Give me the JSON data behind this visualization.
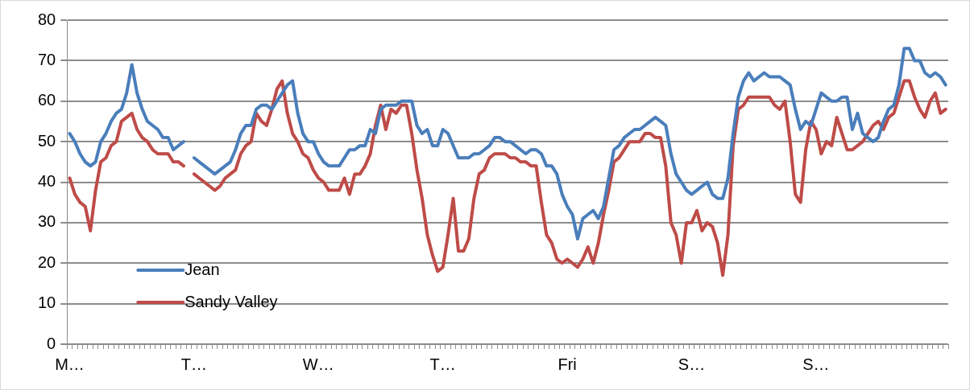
{
  "chart_data": {
    "type": "line",
    "categories": [
      "M…",
      null,
      null,
      null,
      null,
      null,
      null,
      null,
      null,
      null,
      null,
      null,
      null,
      null,
      null,
      null,
      null,
      null,
      null,
      null,
      null,
      null,
      null,
      null,
      "T…",
      null,
      null,
      null,
      null,
      null,
      null,
      null,
      null,
      null,
      null,
      null,
      null,
      null,
      null,
      null,
      null,
      null,
      null,
      null,
      null,
      null,
      null,
      null,
      "W…",
      null,
      null,
      null,
      null,
      null,
      null,
      null,
      null,
      null,
      null,
      null,
      null,
      null,
      null,
      null,
      null,
      null,
      null,
      null,
      null,
      null,
      null,
      null,
      "T…",
      null,
      null,
      null,
      null,
      null,
      null,
      null,
      null,
      null,
      null,
      null,
      null,
      null,
      null,
      null,
      null,
      null,
      null,
      null,
      null,
      null,
      null,
      null,
      "Fri",
      null,
      null,
      null,
      null,
      null,
      null,
      null,
      null,
      null,
      null,
      null,
      null,
      null,
      null,
      null,
      null,
      null,
      null,
      null,
      null,
      null,
      null,
      null,
      "S…",
      null,
      null,
      null,
      null,
      null,
      null,
      null,
      null,
      null,
      null,
      null,
      null,
      null,
      null,
      null,
      null,
      null,
      null,
      null,
      null,
      null,
      null,
      null,
      "S…",
      null,
      null,
      null,
      null,
      null,
      null,
      null,
      null,
      null,
      null,
      null,
      null,
      null,
      null,
      null,
      null,
      null,
      null,
      null,
      null,
      null,
      null,
      null,
      null,
      null
    ],
    "series": [
      {
        "name": "Jean",
        "color": "#4a7ebb",
        "values": [
          52,
          50,
          47,
          45,
          44,
          45,
          50,
          52,
          55,
          57,
          58,
          62,
          69,
          62,
          58,
          55,
          54,
          53,
          51,
          51,
          48,
          49,
          50,
          null,
          46,
          45,
          44,
          43,
          42,
          43,
          44,
          45,
          48,
          52,
          54,
          54,
          58,
          59,
          59,
          58,
          60,
          62,
          64,
          65,
          57,
          52,
          50,
          50,
          47,
          45,
          44,
          44,
          44,
          46,
          48,
          48,
          49,
          49,
          53,
          52,
          58,
          59,
          59,
          59,
          60,
          60,
          60,
          54,
          52,
          53,
          49,
          49,
          53,
          52,
          49,
          46,
          46,
          46,
          47,
          47,
          48,
          49,
          51,
          51,
          50,
          50,
          49,
          48,
          47,
          48,
          48,
          47,
          44,
          44,
          42,
          37,
          34,
          32,
          26,
          31,
          32,
          33,
          31,
          34,
          41,
          48,
          49,
          51,
          52,
          53,
          53,
          54,
          55,
          56,
          55,
          54,
          47,
          42,
          40,
          38,
          37,
          38,
          39,
          40,
          37,
          36,
          36,
          41,
          52,
          61,
          65,
          67,
          65,
          66,
          67,
          66,
          66,
          66,
          65,
          64,
          58,
          53,
          55,
          54,
          58,
          62,
          61,
          60,
          60,
          61,
          61,
          53,
          57,
          52,
          51,
          50,
          51,
          55,
          58,
          59,
          64,
          73,
          73,
          70,
          70,
          67,
          66,
          67,
          66,
          64
        ]
      },
      {
        "name": "Sandy Valley",
        "color": "#be4b48",
        "values": [
          41,
          37,
          35,
          34,
          28,
          38,
          45,
          46,
          49,
          50,
          55,
          56,
          57,
          53,
          51,
          50,
          48,
          47,
          47,
          47,
          45,
          45,
          44,
          null,
          42,
          41,
          40,
          39,
          38,
          39,
          41,
          42,
          43,
          47,
          49,
          50,
          57,
          55,
          54,
          58,
          63,
          65,
          57,
          52,
          50,
          47,
          46,
          43,
          41,
          40,
          38,
          38,
          38,
          41,
          37,
          42,
          42,
          44,
          47,
          54,
          59,
          53,
          58,
          57,
          59,
          59,
          52,
          43,
          36,
          27,
          22,
          18,
          19,
          27,
          36,
          23,
          23,
          26,
          36,
          42,
          43,
          46,
          47,
          47,
          47,
          46,
          46,
          45,
          45,
          44,
          44,
          35,
          27,
          25,
          21,
          20,
          21,
          20,
          19,
          21,
          24,
          20,
          25,
          32,
          38,
          45,
          46,
          48,
          50,
          50,
          50,
          52,
          52,
          51,
          51,
          44,
          30,
          27,
          20,
          30,
          30,
          33,
          28,
          30,
          29,
          25,
          17,
          27,
          49,
          58,
          59,
          61,
          61,
          61,
          61,
          61,
          59,
          58,
          60,
          50,
          37,
          35,
          48,
          55,
          53,
          47,
          50,
          49,
          56,
          52,
          48,
          48,
          49,
          50,
          52,
          54,
          55,
          53,
          56,
          57,
          61,
          65,
          65,
          61,
          58,
          56,
          60,
          62,
          57,
          58
        ]
      }
    ],
    "ylim": [
      0,
      80
    ],
    "yticks": [
      0,
      10,
      20,
      30,
      40,
      50,
      60,
      70,
      80
    ],
    "grid": "y",
    "legend": "bottom left",
    "marker": "none",
    "line_style": "solid"
  }
}
